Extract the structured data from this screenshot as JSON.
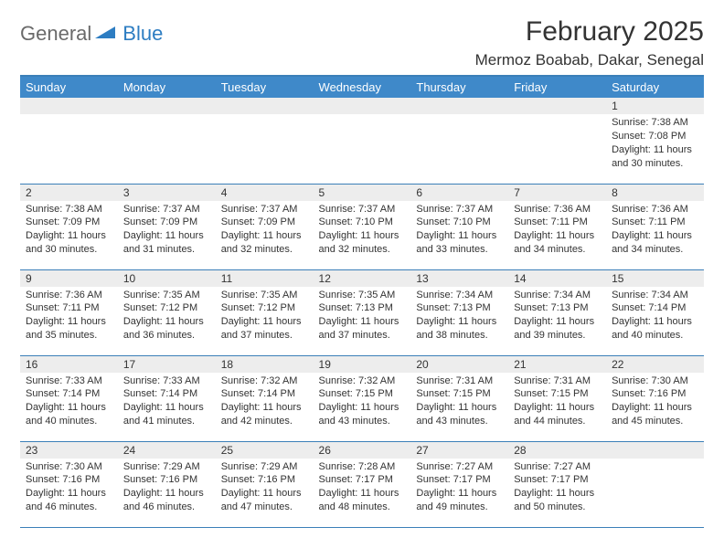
{
  "logo": {
    "text1": "General",
    "text2": "Blue",
    "color1": "#6a6a6a",
    "color2": "#2d7dc2"
  },
  "header": {
    "month": "February 2025",
    "location": "Mermoz Boabab, Dakar, Senegal"
  },
  "theme": {
    "header_bg": "#3f89c9",
    "header_text": "#ffffff",
    "row_border": "#3b7fb8",
    "daynum_bg": "#ededed",
    "text_color": "#333333",
    "page_bg": "#ffffff"
  },
  "columns": [
    "Sunday",
    "Monday",
    "Tuesday",
    "Wednesday",
    "Thursday",
    "Friday",
    "Saturday"
  ],
  "weeks": [
    [
      {
        "blank": true
      },
      {
        "blank": true
      },
      {
        "blank": true
      },
      {
        "blank": true
      },
      {
        "blank": true
      },
      {
        "blank": true
      },
      {
        "n": "1",
        "sunrise": "7:38 AM",
        "sunset": "7:08 PM",
        "daylight": "11 hours and 30 minutes."
      }
    ],
    [
      {
        "n": "2",
        "sunrise": "7:38 AM",
        "sunset": "7:09 PM",
        "daylight": "11 hours and 30 minutes."
      },
      {
        "n": "3",
        "sunrise": "7:37 AM",
        "sunset": "7:09 PM",
        "daylight": "11 hours and 31 minutes."
      },
      {
        "n": "4",
        "sunrise": "7:37 AM",
        "sunset": "7:09 PM",
        "daylight": "11 hours and 32 minutes."
      },
      {
        "n": "5",
        "sunrise": "7:37 AM",
        "sunset": "7:10 PM",
        "daylight": "11 hours and 32 minutes."
      },
      {
        "n": "6",
        "sunrise": "7:37 AM",
        "sunset": "7:10 PM",
        "daylight": "11 hours and 33 minutes."
      },
      {
        "n": "7",
        "sunrise": "7:36 AM",
        "sunset": "7:11 PM",
        "daylight": "11 hours and 34 minutes."
      },
      {
        "n": "8",
        "sunrise": "7:36 AM",
        "sunset": "7:11 PM",
        "daylight": "11 hours and 34 minutes."
      }
    ],
    [
      {
        "n": "9",
        "sunrise": "7:36 AM",
        "sunset": "7:11 PM",
        "daylight": "11 hours and 35 minutes."
      },
      {
        "n": "10",
        "sunrise": "7:35 AM",
        "sunset": "7:12 PM",
        "daylight": "11 hours and 36 minutes."
      },
      {
        "n": "11",
        "sunrise": "7:35 AM",
        "sunset": "7:12 PM",
        "daylight": "11 hours and 37 minutes."
      },
      {
        "n": "12",
        "sunrise": "7:35 AM",
        "sunset": "7:13 PM",
        "daylight": "11 hours and 37 minutes."
      },
      {
        "n": "13",
        "sunrise": "7:34 AM",
        "sunset": "7:13 PM",
        "daylight": "11 hours and 38 minutes."
      },
      {
        "n": "14",
        "sunrise": "7:34 AM",
        "sunset": "7:13 PM",
        "daylight": "11 hours and 39 minutes."
      },
      {
        "n": "15",
        "sunrise": "7:34 AM",
        "sunset": "7:14 PM",
        "daylight": "11 hours and 40 minutes."
      }
    ],
    [
      {
        "n": "16",
        "sunrise": "7:33 AM",
        "sunset": "7:14 PM",
        "daylight": "11 hours and 40 minutes."
      },
      {
        "n": "17",
        "sunrise": "7:33 AM",
        "sunset": "7:14 PM",
        "daylight": "11 hours and 41 minutes."
      },
      {
        "n": "18",
        "sunrise": "7:32 AM",
        "sunset": "7:14 PM",
        "daylight": "11 hours and 42 minutes."
      },
      {
        "n": "19",
        "sunrise": "7:32 AM",
        "sunset": "7:15 PM",
        "daylight": "11 hours and 43 minutes."
      },
      {
        "n": "20",
        "sunrise": "7:31 AM",
        "sunset": "7:15 PM",
        "daylight": "11 hours and 43 minutes."
      },
      {
        "n": "21",
        "sunrise": "7:31 AM",
        "sunset": "7:15 PM",
        "daylight": "11 hours and 44 minutes."
      },
      {
        "n": "22",
        "sunrise": "7:30 AM",
        "sunset": "7:16 PM",
        "daylight": "11 hours and 45 minutes."
      }
    ],
    [
      {
        "n": "23",
        "sunrise": "7:30 AM",
        "sunset": "7:16 PM",
        "daylight": "11 hours and 46 minutes."
      },
      {
        "n": "24",
        "sunrise": "7:29 AM",
        "sunset": "7:16 PM",
        "daylight": "11 hours and 46 minutes."
      },
      {
        "n": "25",
        "sunrise": "7:29 AM",
        "sunset": "7:16 PM",
        "daylight": "11 hours and 47 minutes."
      },
      {
        "n": "26",
        "sunrise": "7:28 AM",
        "sunset": "7:17 PM",
        "daylight": "11 hours and 48 minutes."
      },
      {
        "n": "27",
        "sunrise": "7:27 AM",
        "sunset": "7:17 PM",
        "daylight": "11 hours and 49 minutes."
      },
      {
        "n": "28",
        "sunrise": "7:27 AM",
        "sunset": "7:17 PM",
        "daylight": "11 hours and 50 minutes."
      },
      {
        "blank": true
      }
    ]
  ],
  "labels": {
    "sunrise": "Sunrise:",
    "sunset": "Sunset:",
    "daylight": "Daylight:"
  }
}
